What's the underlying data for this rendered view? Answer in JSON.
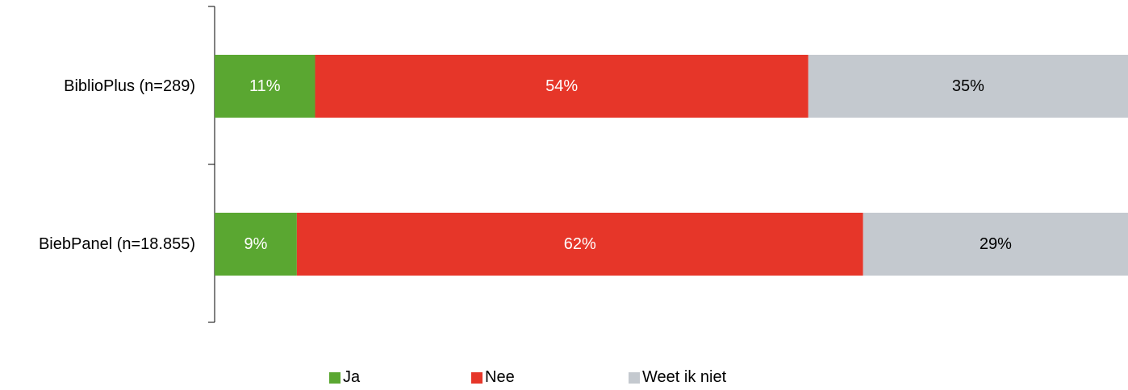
{
  "chart_data": {
    "type": "bar",
    "orientation": "horizontal",
    "stacked": true,
    "percent_stacked": true,
    "categories": [
      "BiblioPlus (n=289)",
      "BiebPanel (n=18.855)"
    ],
    "series": [
      {
        "name": "Ja",
        "values": [
          11,
          9
        ],
        "labels": [
          "11%",
          "9%"
        ],
        "color": "#5aa731",
        "label_color": "#ffffff"
      },
      {
        "name": "Nee",
        "values": [
          54,
          62
        ],
        "labels": [
          "54%",
          "62%"
        ],
        "color": "#e63629",
        "label_color": "#ffffff"
      },
      {
        "name": "Weet ik niet",
        "values": [
          35,
          29
        ],
        "labels": [
          "35%",
          "29%"
        ],
        "color": "#c4c9cf",
        "label_color": "#000000"
      }
    ],
    "xlim": [
      0,
      100
    ],
    "grid": false,
    "legend": "bottom-center",
    "title": "",
    "xlabel": "",
    "ylabel": ""
  }
}
